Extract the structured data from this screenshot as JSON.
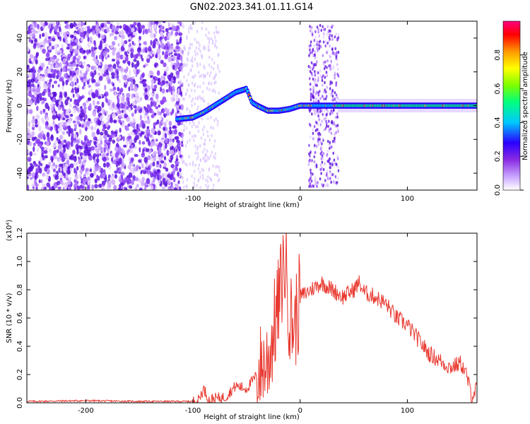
{
  "title": "GN02.2023.341.01.11.G14",
  "colors": {
    "snr_line": "#e8382f",
    "noise_purple": "#7a2ef0",
    "colorbar_stops": [
      "#ffffff",
      "#8a2be2",
      "#2a00ff",
      "#00c8ff",
      "#00ff7f",
      "#7cff00",
      "#ffff00",
      "#ff7f00",
      "#ff0000",
      "#ff0080"
    ]
  },
  "chart_data": [
    {
      "type": "heatmap",
      "title": "",
      "xlabel": "Height of straight line (km)",
      "ylabel": "Frequency (Hz)",
      "xlim": [
        -255,
        165
      ],
      "ylim": [
        -50,
        50
      ],
      "x_ticks": [
        -200,
        -100,
        0,
        100
      ],
      "y_ticks": [
        -40,
        -20,
        0,
        20,
        40
      ],
      "colorbar": {
        "label": "Normalized spectral amplitude",
        "range": [
          0,
          1
        ],
        "ticks": [
          "0.0",
          "0.2",
          "0.4",
          "0.6",
          "0.8"
        ]
      },
      "signal_track": {
        "description_points_x": [
          -115,
          -100,
          -90,
          -80,
          -70,
          -60,
          -50,
          -45,
          -40,
          -30,
          -20,
          -10,
          0,
          10,
          20,
          35,
          165
        ],
        "description_points_y": [
          -8,
          -7,
          -4,
          0,
          4,
          8,
          10,
          2,
          0,
          -3,
          -3,
          -2,
          0,
          0,
          0,
          0,
          0
        ]
      }
    },
    {
      "type": "line",
      "title": "",
      "xlabel": "Height of straight line (km)",
      "ylabel": "SNR (10 * v/v)",
      "scale_label": "(x10⁴)",
      "xlim": [
        -255,
        165
      ],
      "ylim": [
        0,
        1.2
      ],
      "x_ticks": [
        -200,
        -100,
        0,
        100
      ],
      "y_ticks": [
        "0.0",
        "0.2",
        "0.4",
        "0.6",
        "0.8",
        "1.0",
        "1.2"
      ],
      "series": [
        {
          "x": [
            -255,
            -200,
            -150,
            -100,
            -95,
            -90,
            -85,
            -80,
            -70,
            -60,
            -50,
            -40,
            -30,
            -20,
            -15,
            -12,
            -10,
            -5,
            0,
            10,
            20,
            30,
            40,
            50,
            55,
            60,
            70,
            80,
            90,
            100,
            110,
            120,
            130,
            140,
            150,
            155,
            160,
            165
          ],
          "values": [
            0.01,
            0.015,
            0.01,
            0.01,
            0.02,
            0.1,
            0.02,
            0.03,
            0.04,
            0.12,
            0.1,
            0.2,
            0.3,
            0.7,
            1.0,
            0.9,
            0.6,
            0.55,
            0.75,
            0.8,
            0.85,
            0.8,
            0.75,
            0.8,
            0.85,
            0.78,
            0.75,
            0.7,
            0.6,
            0.55,
            0.45,
            0.35,
            0.3,
            0.25,
            0.28,
            0.2,
            0.05,
            0.1
          ]
        }
      ]
    }
  ]
}
